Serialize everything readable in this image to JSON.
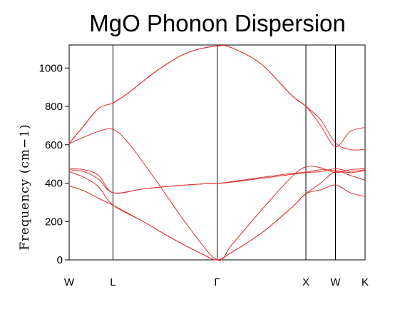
{
  "chart_data": {
    "type": "line",
    "title": "MgO Phonon Dispersion",
    "xlabel": "",
    "ylabel": "Frequency (cm−1)",
    "ylim": [
      0,
      1120
    ],
    "yticks": [
      0,
      200,
      400,
      600,
      800,
      1000
    ],
    "xlim": [
      0,
      10
    ],
    "xticks": [
      {
        "x": 0,
        "label": "W"
      },
      {
        "x": 1.48,
        "label": "L"
      },
      {
        "x": 5.0,
        "label": "Γ"
      },
      {
        "x": 8.0,
        "label": "X"
      },
      {
        "x": 9.0,
        "label": "W"
      },
      {
        "x": 10.0,
        "label": "K"
      }
    ],
    "vertical_lines": [
      1.48,
      5.0,
      8.0,
      9.0
    ],
    "grid": false,
    "legend": "none",
    "line_color": "#e03030",
    "series": [
      {
        "x": [
          0,
          0.5,
          1.0,
          1.48,
          2.5,
          3.5,
          4.5,
          5.0,
          5.5,
          6.5,
          7.5,
          8.0,
          8.5,
          9.0,
          9.5,
          10.0
        ],
        "values": [
          385,
          360,
          320,
          285,
          200,
          110,
          30,
          0,
          40,
          140,
          270,
          345,
          365,
          390,
          350,
          330
        ]
      },
      {
        "x": [
          0,
          0.5,
          1.0,
          1.48,
          2.5,
          3.5,
          4.5,
          5.0,
          5.5,
          6.5,
          7.5,
          8.0,
          8.5,
          9.0,
          9.5,
          10.0
        ],
        "values": [
          460,
          430,
          380,
          285,
          200,
          110,
          30,
          0,
          40,
          140,
          270,
          345,
          400,
          460,
          440,
          415
        ]
      },
      {
        "x": [
          0,
          0.5,
          1.0,
          1.48,
          2.5,
          3.5,
          4.5,
          5.0,
          5.5,
          6.5,
          7.5,
          8.0,
          8.5,
          9.0,
          9.5,
          10.0
        ],
        "values": [
          470,
          460,
          420,
          350,
          370,
          385,
          396,
          398,
          405,
          425,
          445,
          455,
          460,
          475,
          462,
          470
        ]
      },
      {
        "x": [
          0,
          0.5,
          1.0,
          1.48,
          2.5,
          3.5,
          4.5,
          5.0,
          5.5,
          6.5,
          7.5,
          8.0,
          8.5,
          9.0,
          9.5,
          10.0
        ],
        "values": [
          475,
          470,
          440,
          350,
          370,
          385,
          396,
          398,
          408,
          430,
          450,
          457,
          470,
          465,
          455,
          465
        ]
      },
      {
        "x": [
          0,
          0.5,
          1.0,
          1.48,
          2.0,
          3.0,
          4.0,
          5.0,
          5.5,
          6.5,
          7.5,
          8.0,
          8.5,
          9.0,
          9.5,
          10.0
        ],
        "values": [
          605,
          640,
          670,
          680,
          610,
          400,
          180,
          0,
          80,
          260,
          430,
          485,
          480,
          455,
          470,
          475
        ]
      },
      {
        "x": [
          0,
          0.5,
          1.0,
          1.48,
          2.0,
          3.0,
          4.0,
          5.0,
          5.5,
          6.5,
          7.5,
          8.0,
          8.5,
          9.0,
          9.5,
          10.0
        ],
        "values": [
          607,
          700,
          790,
          818,
          870,
          990,
          1080,
          1115,
          1105,
          1020,
          860,
          800,
          730,
          610,
          575,
          575
        ]
      },
      {
        "x": [
          0,
          0.5,
          1.0,
          1.48,
          2.0,
          3.0,
          4.0,
          5.0,
          5.5,
          6.5,
          7.5,
          8.0,
          8.5,
          9.0,
          9.5,
          10.0
        ],
        "values": [
          607,
          700,
          790,
          818,
          870,
          990,
          1080,
          1115,
          1105,
          1020,
          860,
          800,
          700,
          590,
          670,
          690
        ]
      }
    ]
  }
}
